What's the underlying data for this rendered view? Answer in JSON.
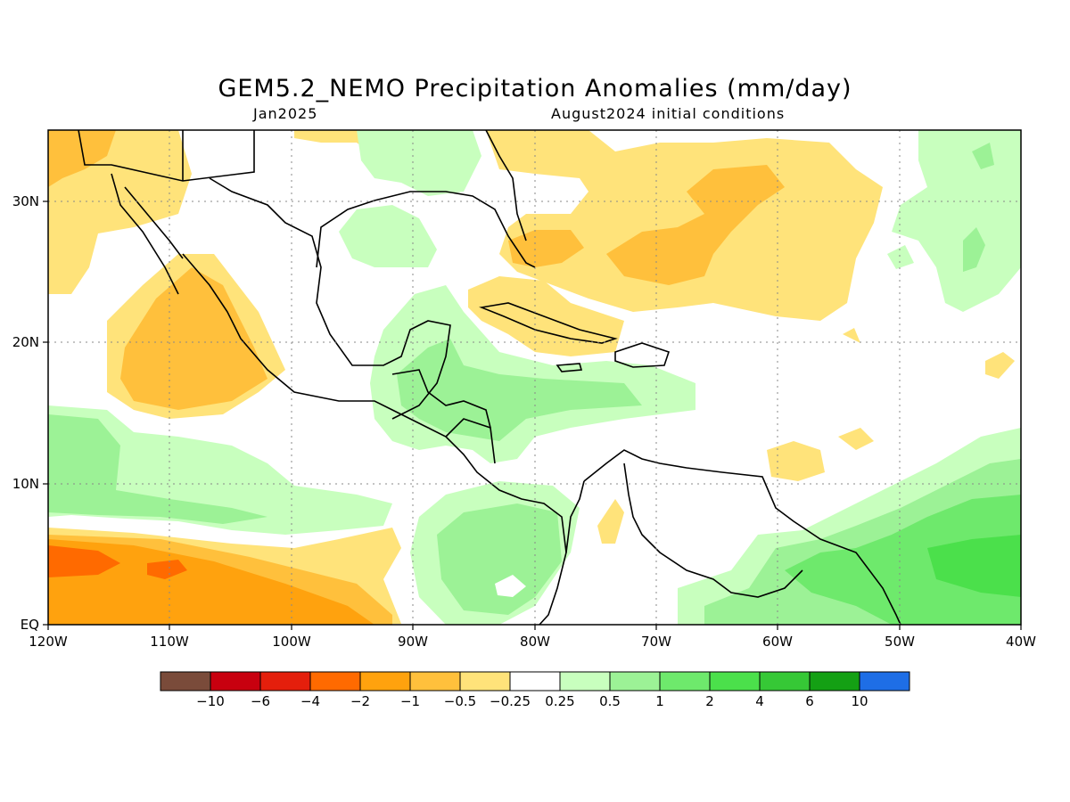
{
  "title": "GEM5.2_NEMO Precipitation Anomalies (mm/day)",
  "subtitle_left": "Jan2025",
  "subtitle_right": "August2024 initial conditions",
  "x_ticks": [
    "120W",
    "110W",
    "100W",
    "90W",
    "80W",
    "70W",
    "60W",
    "50W",
    "40W"
  ],
  "y_ticks": [
    "30N",
    "20N",
    "10N",
    "EQ"
  ],
  "colorbar": {
    "colors": [
      "#7a4b3a",
      "#c8000f",
      "#e41f0c",
      "#ff6a00",
      "#ffa20e",
      "#ffc03c",
      "#ffe37a",
      "#ffffff",
      "#c8ffbe",
      "#9cf296",
      "#6ee96c",
      "#4be04b",
      "#36c836",
      "#14a014",
      "#1e6ee6"
    ],
    "labels": [
      "−10",
      "−6",
      "−4",
      "−2",
      "−1",
      "−0.5",
      "−0.25",
      "0.25",
      "0.5",
      "1",
      "2",
      "4",
      "6",
      "10"
    ]
  },
  "colors": {
    "dry_light": "#ffe37a",
    "dry_mid": "#ffc03c",
    "dry_strong": "#ffa20e",
    "dry_heavy": "#ff6a00",
    "wet_light": "#c8ffbe",
    "wet_mid": "#9cf296",
    "wet_strong": "#6ee96c",
    "wet_heavy": "#4be04b"
  }
}
